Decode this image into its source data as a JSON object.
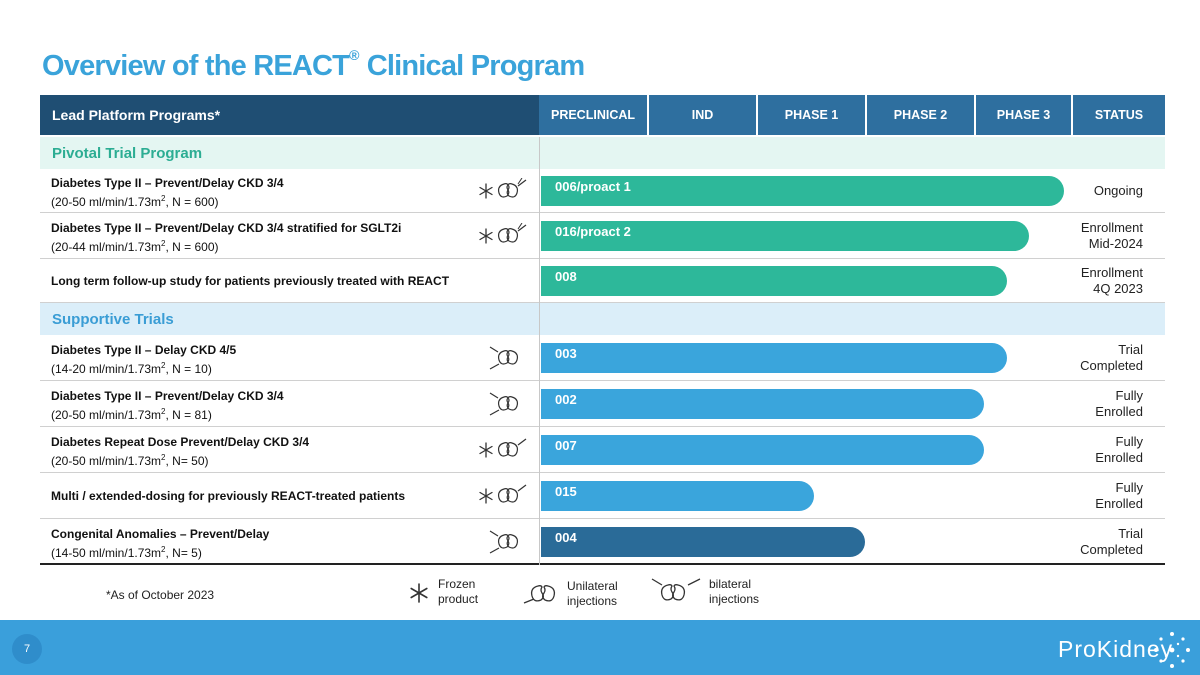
{
  "title": {
    "main": "Overview of the REACT",
    "reg": "®",
    "rest": " Clinical Program"
  },
  "header": {
    "lead": "Lead Platform Programs*",
    "columns": [
      "PRECLINICAL",
      "IND",
      "PHASE 1",
      "PHASE 2",
      "PHASE 3",
      "STATUS"
    ]
  },
  "sections": {
    "pivotal": "Pivotal Trial Program",
    "supportive": "Supportive Trials"
  },
  "rows": [
    {
      "line1": "Diabetes Type II – Prevent/Delay CKD 3/4",
      "line2a": "(20-50 ml/min/1.73m",
      "sup": "2",
      "line2b": ", N = 600)",
      "bar": "006/proact 1",
      "status": "Ongoing",
      "status2": "",
      "icon": "frozen-unilateral-bilateral",
      "progress": 0.92
    },
    {
      "line1": "Diabetes Type II – Prevent/Delay CKD 3/4 stratified for SGLT2i",
      "line2a": "(20-44 ml/min/1.73m",
      "sup": "2",
      "line2b": ", N = 600)",
      "bar": "016/proact 2",
      "status": "Enrollment",
      "status2": "Mid-2024",
      "icon": "frozen-unilateral-bilateral",
      "progress": 0.86
    },
    {
      "line1": "Long term follow-up study for patients previously treated with REACT",
      "line2a": "",
      "sup": "",
      "line2b": "",
      "bar": "008",
      "status": "Enrollment",
      "status2": "4Q 2023",
      "icon": "",
      "progress": 0.82
    },
    {
      "line1": "Diabetes Type II – Delay CKD 4/5",
      "line2a": "(14-20 ml/min/1.73m",
      "sup": "2",
      "line2b": ", N = 10)",
      "bar": "003",
      "status": "Trial",
      "status2": "Completed",
      "icon": "unilateral",
      "progress": 0.82
    },
    {
      "line1": "Diabetes Type II – Prevent/Delay CKD 3/4",
      "line2a": "(20-50 ml/min/1.73m",
      "sup": "2",
      "line2b": ", N = 81)",
      "bar": "002",
      "status": "Fully",
      "status2": "Enrolled",
      "icon": "unilateral",
      "progress": 0.78
    },
    {
      "line1": "Diabetes Repeat Dose Prevent/Delay CKD 3/4",
      "line2a": "(20-50 ml/min/1.73m",
      "sup": "2",
      "line2b": ", N= 50)",
      "bar": "007",
      "status": "Fully",
      "status2": "Enrolled",
      "icon": "frozen-bilateral",
      "progress": 0.78
    },
    {
      "line1": "Multi / extended-dosing for previously REACT-treated patients",
      "line2a": "",
      "sup": "",
      "line2b": "",
      "bar": "015",
      "status": "Fully",
      "status2": "Enrolled",
      "icon": "frozen-bilateral",
      "progress": 0.48
    },
    {
      "line1": "Congenital Anomalies – Prevent/Delay",
      "line2a": "(14-50 ml/min/1.73m",
      "sup": "2",
      "line2b": ", N= 5)",
      "bar": "004",
      "status": "Trial",
      "status2": "Completed",
      "icon": "unilateral",
      "progress": 0.57
    }
  ],
  "colors": {
    "pivotal": "#2db89a",
    "supportive": "#3aa5dc",
    "congenital": "#2a6b98"
  },
  "footnote": "*As of October 2023",
  "legend": {
    "frozen": "Frozen product",
    "frozen1": "Frozen",
    "frozen2": "product",
    "uni1": "Unilateral",
    "uni2": "injections",
    "bi1": "bilateral",
    "bi2": "injections"
  },
  "footer": {
    "page": "7",
    "logo": "ProKidney"
  }
}
